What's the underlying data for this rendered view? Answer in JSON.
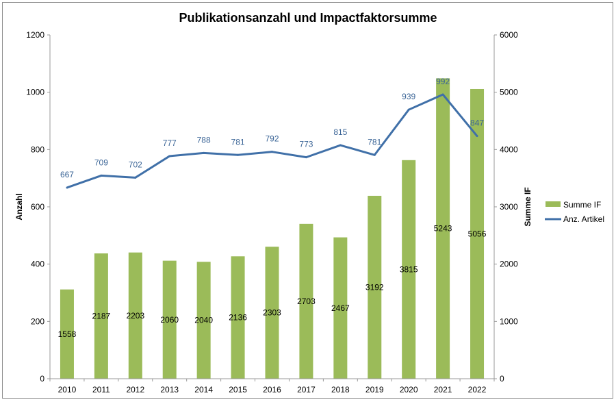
{
  "chart_data": {
    "type": "bar+line",
    "title": "Publikationsanzahl und Impactfaktorsumme",
    "categories": [
      "2010",
      "2011",
      "2012",
      "2013",
      "2014",
      "2015",
      "2016",
      "2017",
      "2018",
      "2019",
      "2020",
      "2021",
      "2022"
    ],
    "series": [
      {
        "name": "Summe IF",
        "type": "bar",
        "axis": "right",
        "color": "#9BBB59",
        "values": [
          1558,
          2187,
          2203,
          2060,
          2040,
          2136,
          2303,
          2703,
          2467,
          3192,
          3815,
          5243,
          5056
        ]
      },
      {
        "name": "Anz. Artikel",
        "type": "line",
        "axis": "left",
        "color": "#4070A8",
        "values": [
          667,
          709,
          702,
          777,
          788,
          781,
          792,
          773,
          815,
          781,
          939,
          992,
          847
        ]
      }
    ],
    "ylabel_left": "Anzahl",
    "ylabel_right": "Summe IF",
    "ylim_left": [
      0,
      1200
    ],
    "yticks_left": [
      "0",
      "200",
      "400",
      "600",
      "800",
      "1000",
      "1200"
    ],
    "ylim_right": [
      0,
      6000
    ],
    "yticks_right": [
      "0",
      "1000",
      "2000",
      "3000",
      "4000",
      "5000",
      "6000"
    ],
    "grid": false,
    "legend": "right"
  }
}
